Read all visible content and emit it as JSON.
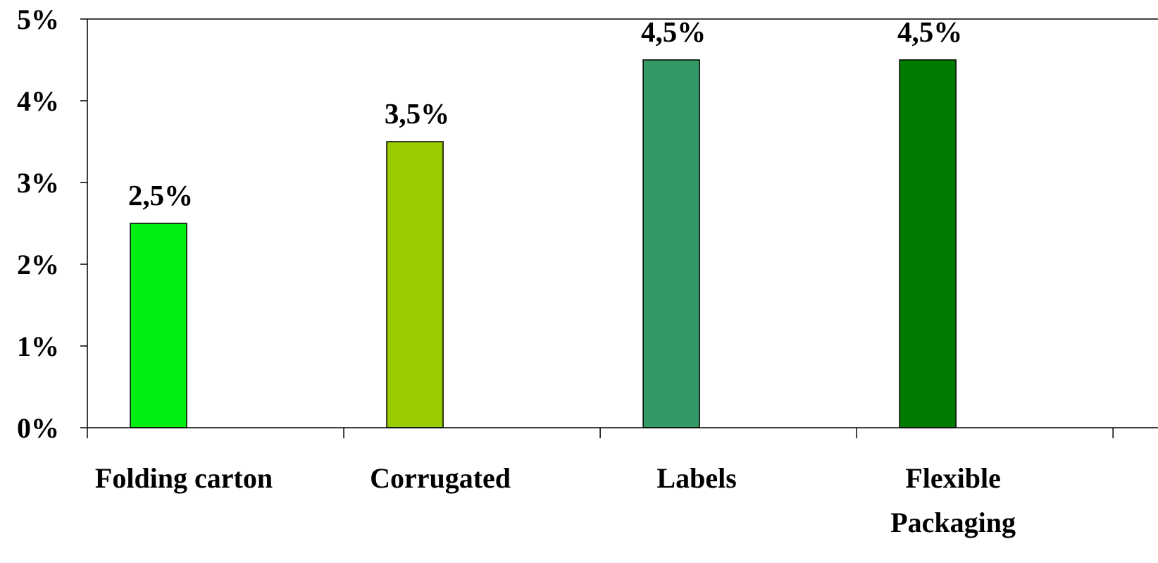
{
  "chart_data": {
    "type": "bar",
    "categories": [
      "Folding carton",
      "Corrugated",
      "Labels",
      "Flexible Packaging"
    ],
    "category_lines": [
      [
        "Folding carton"
      ],
      [
        "Corrugated"
      ],
      [
        "Labels"
      ],
      [
        "Flexible",
        "Packaging"
      ]
    ],
    "values": [
      2.5,
      3.5,
      4.5,
      4.5
    ],
    "data_labels": [
      "2,5%",
      "3,5%",
      "4,5%",
      "4,5%"
    ],
    "colors": [
      "#00ee11",
      "#99cc00",
      "#339966",
      "#007d00"
    ],
    "ylim": [
      0,
      5
    ],
    "yticks": [
      0,
      1,
      2,
      3,
      4,
      5
    ],
    "ytick_labels": [
      "0%",
      "1%",
      "2%",
      "3%",
      "4%",
      "5%"
    ],
    "grid": false,
    "legend": "none"
  }
}
